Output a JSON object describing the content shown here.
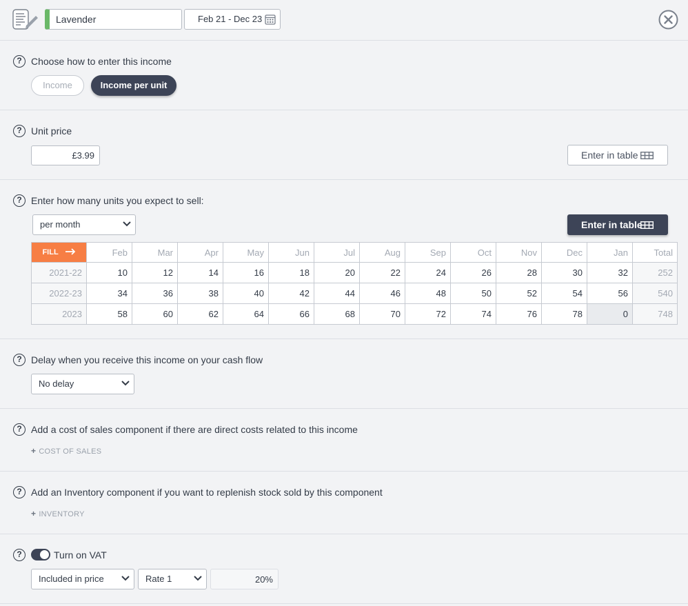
{
  "header": {
    "name": "Lavender",
    "date_range": "Feb 21 - Dec 23",
    "icons": {
      "doc": "notes-edit-icon",
      "calendar": "calendar-icon",
      "close": "close-icon"
    },
    "accent_color": "#6ab868"
  },
  "entry_mode": {
    "question": "Choose how to enter this income",
    "options": [
      "Income",
      "Income per unit"
    ],
    "selected": "Income per unit"
  },
  "unit_price": {
    "question": "Unit price",
    "value": "£3.99",
    "table_button": "Enter in table"
  },
  "units": {
    "question": "Enter how many units you expect to sell:",
    "frequency": "per month",
    "table_button": "Enter in table",
    "fill_label": "FILL",
    "fill_color": "#f77e44",
    "months": [
      "Feb",
      "Mar",
      "Apr",
      "May",
      "Jun",
      "Jul",
      "Aug",
      "Sep",
      "Oct",
      "Nov",
      "Dec",
      "Jan"
    ],
    "total_label": "Total",
    "rows": [
      {
        "label": "2021-22",
        "values": [
          "10",
          "12",
          "14",
          "16",
          "18",
          "20",
          "22",
          "24",
          "26",
          "28",
          "30",
          "32"
        ],
        "total": "252"
      },
      {
        "label": "2022-23",
        "values": [
          "34",
          "36",
          "38",
          "40",
          "42",
          "44",
          "46",
          "48",
          "50",
          "52",
          "54",
          "56"
        ],
        "total": "540"
      },
      {
        "label": "2023",
        "values": [
          "58",
          "60",
          "62",
          "64",
          "66",
          "68",
          "70",
          "72",
          "74",
          "76",
          "78",
          "0"
        ],
        "total": "748"
      }
    ]
  },
  "delay": {
    "question": "Delay when you receive this income on your cash flow",
    "value": "No delay"
  },
  "cost_of_sales": {
    "question": "Add a cost of sales component if there are direct costs related to this income",
    "link": "COST OF SALES"
  },
  "inventory": {
    "question": "Add an Inventory component if you want to replenish stock sold by this component",
    "link": "INVENTORY"
  },
  "vat": {
    "toggle_label": "Turn on VAT",
    "enabled": true,
    "included": "Included in price",
    "rate_option": "Rate 1",
    "rate_value": "20%"
  },
  "theme": {
    "dark": "#3d4457"
  }
}
